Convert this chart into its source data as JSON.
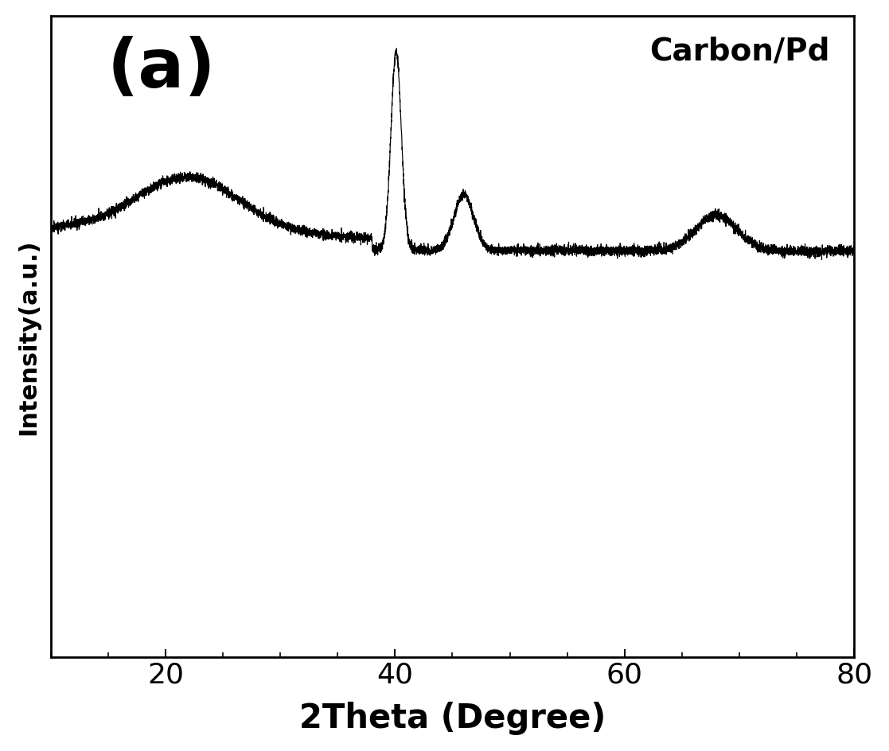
{
  "xlabel": "2Theta (Degree)",
  "ylabel": "Intensity(a.u.)",
  "label_a": "(a)",
  "label_material": "Carbon/Pd",
  "xmin": 10,
  "xmax": 80,
  "xticks": [
    20,
    40,
    60,
    80
  ],
  "line_color": "#000000",
  "background_color": "#ffffff",
  "xlabel_fontsize": 30,
  "ylabel_fontsize": 22,
  "label_a_fontsize": 62,
  "label_material_fontsize": 28,
  "tick_fontsize": 26,
  "ylim_min": -1.8,
  "ylim_max": 1.15
}
